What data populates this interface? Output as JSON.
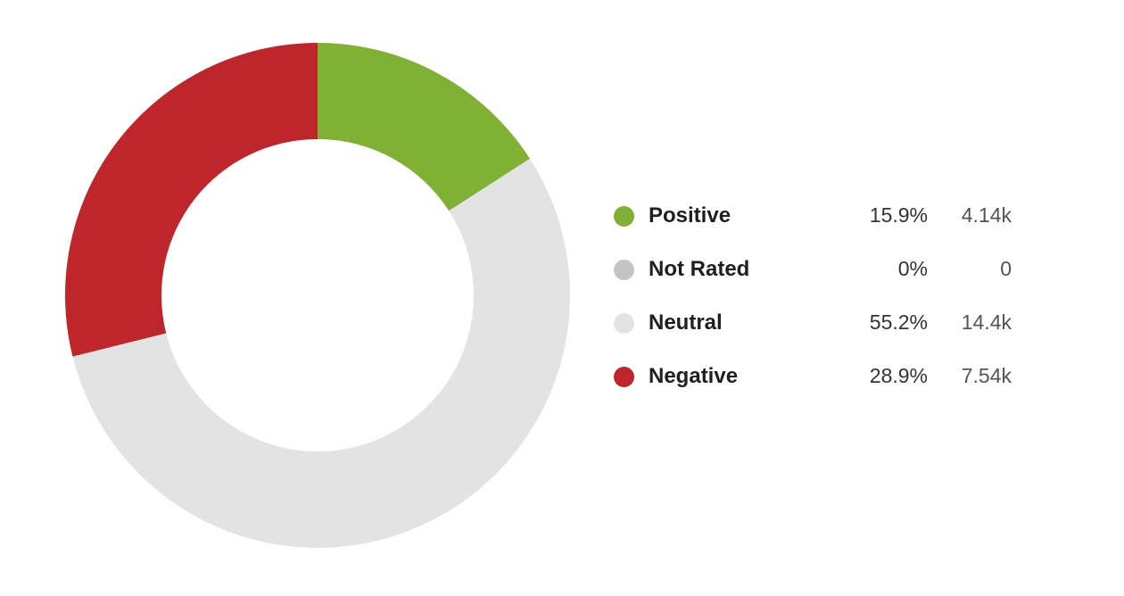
{
  "chart_data": {
    "type": "pie",
    "style": "donut",
    "title": "",
    "legend_position": "right",
    "slices": [
      {
        "label": "Positive",
        "percent_label": "15.9%",
        "count_label": "4.14k",
        "value": 15.9,
        "color": "#80b135",
        "show_in_ring": true
      },
      {
        "label": "Not Rated",
        "percent_label": "0%",
        "count_label": "0",
        "value": 0,
        "color": "#c4c4c4",
        "show_in_ring": false
      },
      {
        "label": "Neutral",
        "percent_label": "55.2%",
        "count_label": "14.4k",
        "value": 55.2,
        "color": "#e3e3e3",
        "show_in_ring": true
      },
      {
        "label": "Negative",
        "percent_label": "28.9%",
        "count_label": "7.54k",
        "value": 28.9,
        "color": "#be262b",
        "show_in_ring": true
      }
    ]
  }
}
